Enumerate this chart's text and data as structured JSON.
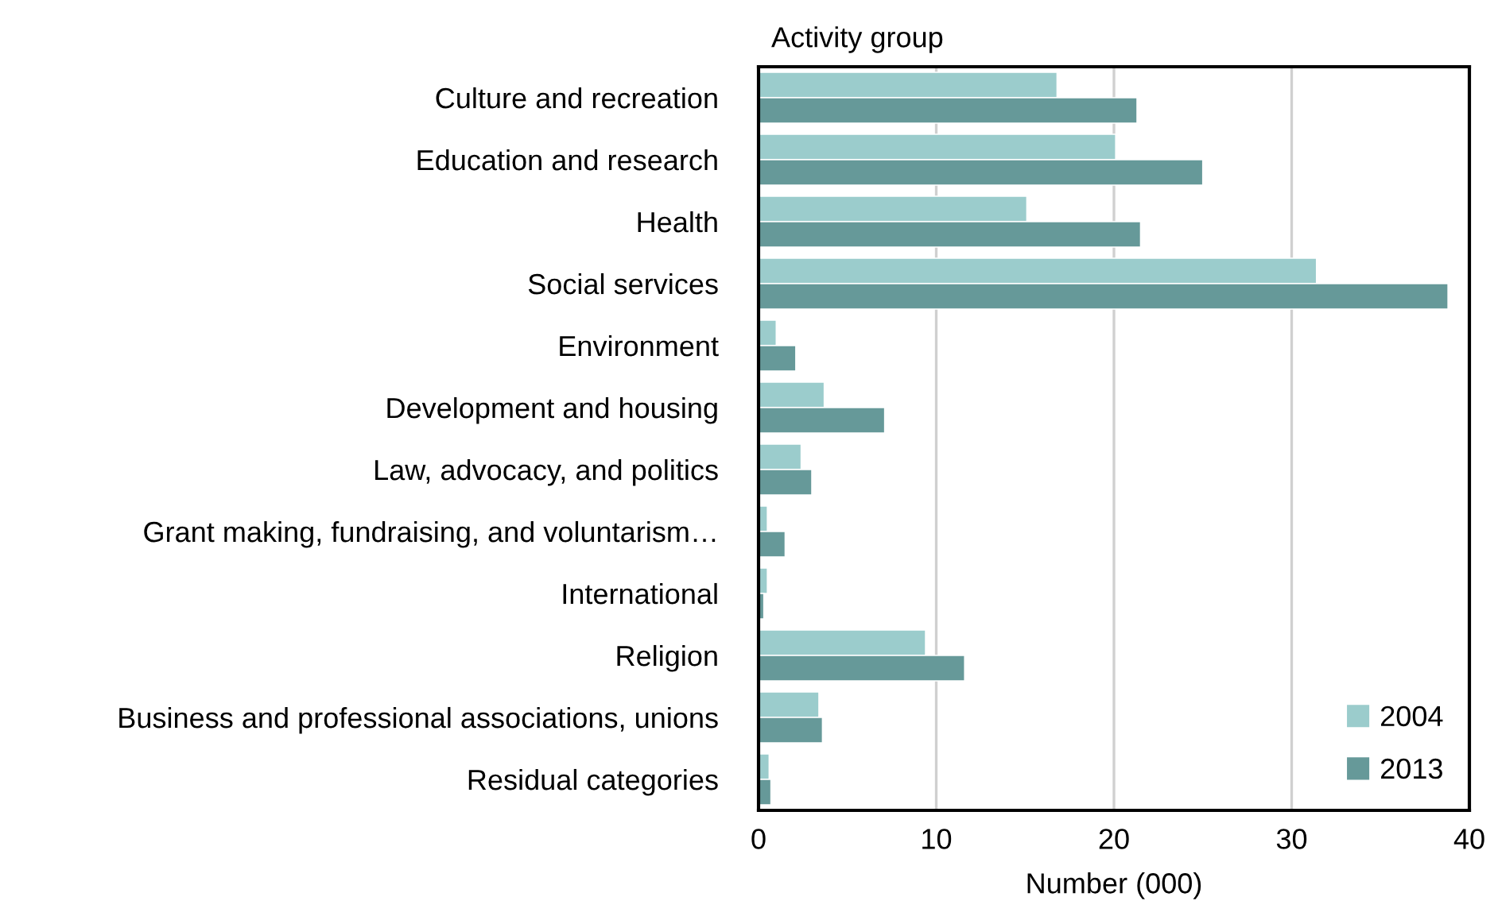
{
  "chart_data": {
    "type": "bar",
    "orientation": "horizontal",
    "ylabel": "Activity group",
    "xlabel": "Number (000)",
    "categories": [
      "Culture and recreation",
      "Education and research",
      "Health",
      "Social services",
      "Environment",
      "Development and housing",
      "Law, advocacy, and politics",
      "Grant making, fundraising, and voluntarism…",
      "International",
      "Religion",
      "Business and professional associations, unions",
      "Residual categories"
    ],
    "series": [
      {
        "name": "2004",
        "color": "#9bcccc",
        "values": [
          16.8,
          20.1,
          15.1,
          31.4,
          1.0,
          3.7,
          2.4,
          0.5,
          0.5,
          9.4,
          3.4,
          0.6
        ]
      },
      {
        "name": "2013",
        "color": "#669999",
        "values": [
          21.3,
          25.0,
          21.5,
          38.8,
          2.1,
          7.1,
          3.0,
          1.5,
          0.3,
          11.6,
          3.6,
          0.7
        ]
      }
    ],
    "xlim": [
      0,
      40
    ],
    "xticks": [
      0,
      10,
      20,
      30,
      40
    ],
    "grid": "x",
    "legend": "bottom right"
  }
}
